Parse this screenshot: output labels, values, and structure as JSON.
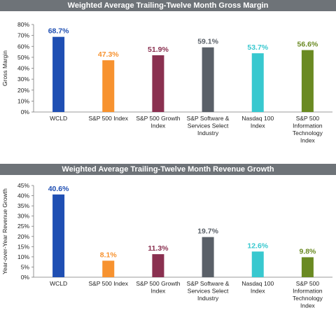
{
  "chart_data": [
    {
      "type": "bar",
      "title": "Weighted Average Trailing-Twelve Month Gross Margin",
      "ylabel": "Gross Margin",
      "xlabel": "",
      "ylim": [
        0,
        80
      ],
      "ytick_step": 10,
      "ytick_labels": [
        "0%",
        "10%",
        "20%",
        "30%",
        "40%",
        "50%",
        "60%",
        "70%",
        "80%"
      ],
      "grid": false,
      "categories": [
        [
          "WCLD"
        ],
        [
          "S&P 500 Index"
        ],
        [
          "S&P 500 Growth",
          "Index"
        ],
        [
          "S&P Software &",
          "Services Select",
          "Industry"
        ],
        [
          "Nasdaq 100",
          "Index"
        ],
        [
          "S&P 500",
          "Information",
          "Technology",
          "Index"
        ]
      ],
      "values": [
        68.7,
        47.3,
        51.9,
        59.1,
        53.7,
        56.6
      ],
      "value_labels": [
        "68.7%",
        "47.3%",
        "51.9%",
        "59.1%",
        "53.7%",
        "56.6%"
      ],
      "colors": [
        "#1f4fb3",
        "#f7922f",
        "#8a3050",
        "#5a6068",
        "#38c8cf",
        "#6a8a22"
      ]
    },
    {
      "type": "bar",
      "title": "Weighted Average Trailing-Twelve Month Revenue Growth",
      "ylabel": "Year-over-Year Revenue Growth",
      "xlabel": "",
      "ylim": [
        0,
        45
      ],
      "ytick_step": 5,
      "ytick_labels": [
        "0%",
        "5%",
        "10%",
        "15%",
        "20%",
        "25%",
        "30%",
        "35%",
        "40%",
        "45%"
      ],
      "grid": false,
      "categories": [
        [
          "WCLD"
        ],
        [
          "S&P 500 Index"
        ],
        [
          "S&P 500 Growth",
          "Index"
        ],
        [
          "S&P Software &",
          "Services Select",
          "Industry"
        ],
        [
          "Nasdaq 100",
          "Index"
        ],
        [
          "S&P 500",
          "Information",
          "Technology",
          "Index"
        ]
      ],
      "values": [
        40.6,
        8.1,
        11.3,
        19.7,
        12.6,
        9.8
      ],
      "value_labels": [
        "40.6%",
        "8.1%",
        "11.3%",
        "19.7%",
        "12.6%",
        "9.8%"
      ],
      "colors": [
        "#1f4fb3",
        "#f7922f",
        "#8a3050",
        "#5a6068",
        "#38c8cf",
        "#6a8a22"
      ]
    }
  ]
}
